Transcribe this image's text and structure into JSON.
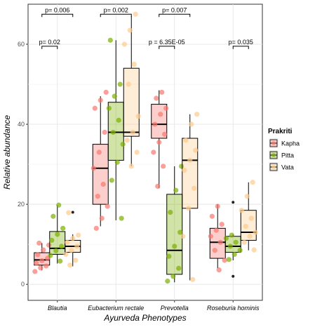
{
  "chart_data": {
    "type": "boxplot",
    "xlabel": "Ayurveda Phenotypes",
    "ylabel": "Relative abundance",
    "ylim": [
      -4,
      70
    ],
    "yticks": [
      0,
      20,
      40,
      60
    ],
    "grid": true,
    "legend_title": "Prakriti",
    "legend_position": "right",
    "categories": [
      "Blautia",
      "Eubacterium  rectale",
      "Prevotella",
      "Roseburia  hominis"
    ],
    "series": [
      {
        "name": "Kapha",
        "fill": "#f8766d",
        "boxes": [
          {
            "q1": 4.8,
            "median": 6.1,
            "q3": 7.9,
            "whisker_low": 3.5,
            "whisker_high": 10.3,
            "outliers": [],
            "points": [
              3.2,
              4.1,
              4.6,
              5.3,
              5.9,
              6.5,
              7.4,
              8.6,
              9.8,
              10.3
            ]
          },
          {
            "q1": 20.0,
            "median": 29.0,
            "q3": 35.0,
            "whisker_low": 14.5,
            "whisker_high": 47.0,
            "outliers": [],
            "points": [
              14.0,
              16.5,
              19.5,
              22.0,
              25.0,
              29.0,
              33.0,
              38.0,
              44.0,
              46.0,
              48.0
            ]
          },
          {
            "q1": 36.5,
            "median": 40.0,
            "q3": 45.0,
            "whisker_low": 24.0,
            "whisker_high": 48.5,
            "outliers": [],
            "points": [
              24.5,
              29.5,
              33.0,
              35.5,
              37.5,
              40.0,
              42.5,
              44.0,
              46.5,
              48.0
            ]
          },
          {
            "q1": 6.5,
            "median": 10.5,
            "q3": 14.0,
            "whisker_low": 4.0,
            "whisker_high": 20.0,
            "outliers": [],
            "points": [
              3.6,
              6.0,
              8.5,
              10.5,
              12.0,
              13.5,
              15.0,
              17.0,
              19.5
            ]
          }
        ]
      },
      {
        "name": "Pitta",
        "fill": "#7cae00",
        "boxes": [
          {
            "q1": 7.5,
            "median": 9.0,
            "q3": 13.2,
            "whisker_low": 5.2,
            "whisker_high": 19.8,
            "outliers": [],
            "points": [
              5.8,
              7.2,
              8.4,
              9.5,
              11.0,
              12.5,
              14.0,
              17.0,
              19.8
            ]
          },
          {
            "q1": 31.0,
            "median": 38.0,
            "q3": 45.5,
            "whisker_low": 16.0,
            "whisker_high": 61.0,
            "outliers": [],
            "points": [
              16.5,
              26.0,
              30.5,
              35.0,
              38.0,
              41.0,
              44.0,
              47.0,
              50.0,
              61.0
            ]
          },
          {
            "q1": 2.5,
            "median": 8.5,
            "q3": 22.5,
            "whisker_low": 0.5,
            "whisker_high": 29.5,
            "outliers": [],
            "points": [
              0.8,
              2.0,
              4.0,
              7.0,
              9.5,
              13.0,
              18.0,
              23.5,
              29.5
            ]
          },
          {
            "q1": 8.0,
            "median": 9.5,
            "q3": 12.0,
            "whisker_low": 6.0,
            "whisker_high": 12.5,
            "outliers": [
              2.0,
              20.5
            ],
            "points": [
              6.2,
              7.5,
              8.5,
              9.5,
              10.5,
              11.5,
              12.3
            ]
          }
        ]
      },
      {
        "name": "Vata",
        "fill": "#fdcb8c",
        "boxes": [
          {
            "q1": 8.0,
            "median": 9.5,
            "q3": 11.0,
            "whisker_low": 4.5,
            "whisker_high": 12.5,
            "outliers": [
              18.0
            ],
            "points": [
              4.8,
              6.0,
              7.5,
              8.5,
              9.5,
              10.5,
              11.5,
              12.3,
              17.9
            ]
          },
          {
            "q1": 37.0,
            "median": 38.0,
            "q3": 54.0,
            "whisker_low": 29.5,
            "whisker_high": 67.0,
            "outliers": [],
            "points": [
              29.5,
              33.0,
              36.0,
              38.0,
              42.0,
              50.0,
              55.0,
              60.0,
              63.5,
              67.5
            ]
          },
          {
            "q1": 19.0,
            "median": 31.0,
            "q3": 36.5,
            "whisker_low": 1.0,
            "whisker_high": 42.5,
            "outliers": [],
            "points": [
              1.2,
              12.0,
              19.0,
              24.0,
              28.5,
              31.0,
              33.5,
              36.0,
              40.0,
              42.5
            ]
          },
          {
            "q1": 11.0,
            "median": 13.0,
            "q3": 18.5,
            "whisker_low": 8.5,
            "whisker_high": 25.5,
            "outliers": [],
            "points": [
              8.6,
              10.5,
              12.0,
              13.0,
              14.5,
              16.5,
              18.5,
              22.0,
              25.5
            ]
          }
        ]
      }
    ],
    "annotations": [
      {
        "text": "p= 0.006",
        "category": 0,
        "from_series": 0,
        "to_series": 2,
        "y": 67.5
      },
      {
        "text": "p= 0.02",
        "category": 0,
        "from_series": 0,
        "to_series": 1,
        "y": 59.5
      },
      {
        "text": "p= 0.002",
        "category": 1,
        "from_series": 0,
        "to_series": 2,
        "y": 67.5
      },
      {
        "text": "p= 0.007",
        "category": 2,
        "from_series": 0,
        "to_series": 2,
        "y": 67.5
      },
      {
        "text": "p = 6.35E-05",
        "category": 2,
        "from_series": 0,
        "to_series": 1,
        "y": 59.5
      },
      {
        "text": "p= 0.035",
        "category": 3,
        "from_series": 1,
        "to_series": 2,
        "y": 59.5
      }
    ]
  }
}
